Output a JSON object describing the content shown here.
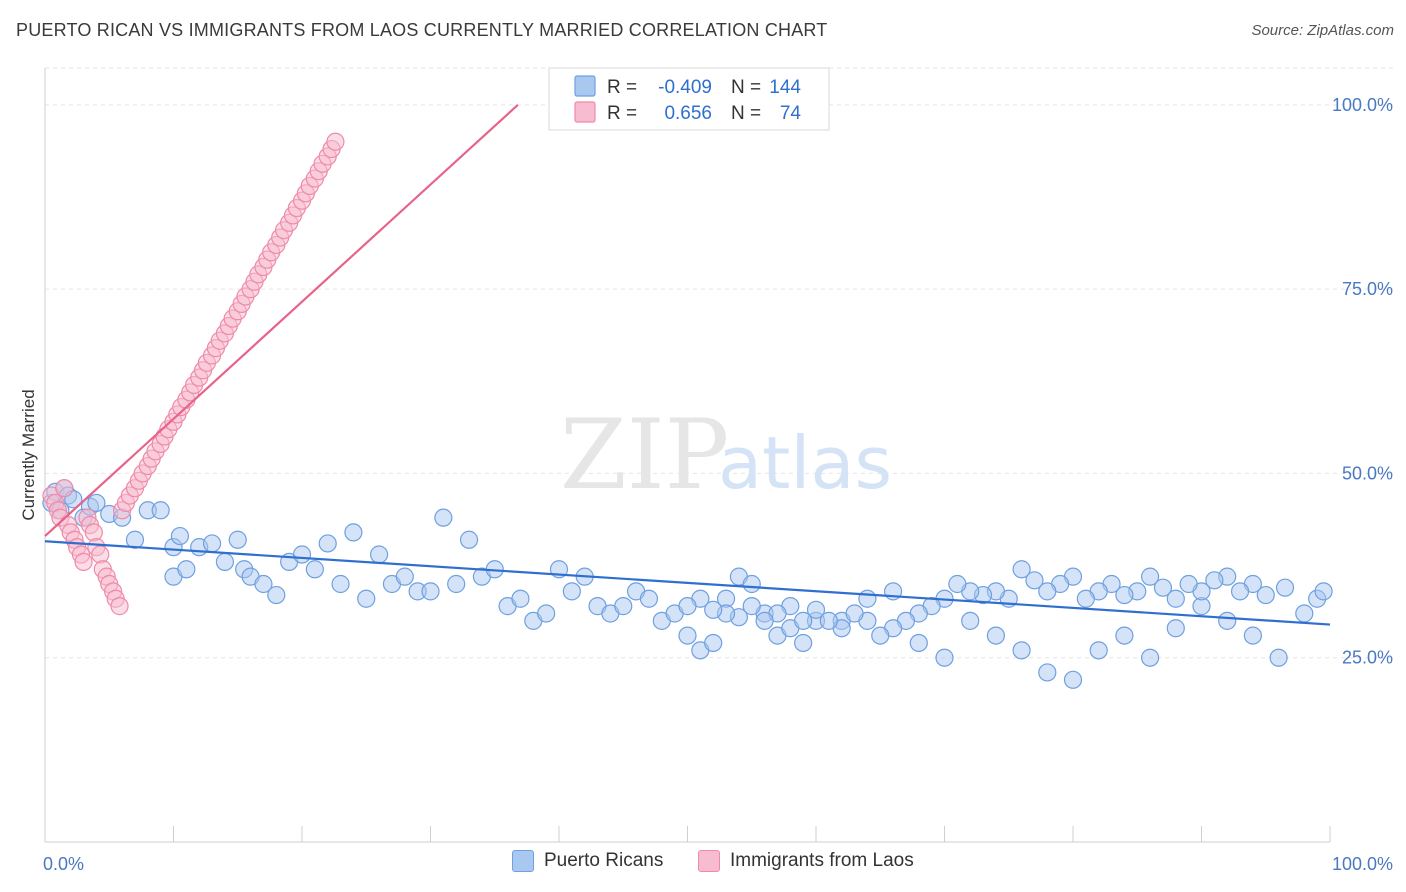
{
  "header": {
    "title": "PUERTO RICAN VS IMMIGRANTS FROM LAOS CURRENTLY MARRIED CORRELATION CHART",
    "source": "Source: ZipAtlas.com"
  },
  "watermark": {
    "zip": "ZIP",
    "atlas": "atlas"
  },
  "chart_data": {
    "type": "scatter",
    "ylabel": "Currently Married",
    "xlim": [
      0,
      100
    ],
    "ylim": [
      0,
      105
    ],
    "x_tick_labels": [
      "0.0%",
      "100.0%"
    ],
    "y_ticks": [
      25,
      50,
      75,
      100
    ],
    "y_tick_labels": [
      "25.0%",
      "50.0%",
      "75.0%",
      "100.0%"
    ],
    "grid": true,
    "legend_placement": "top-center",
    "stats": [
      {
        "r_label": "R =",
        "r": "-0.409",
        "n_label": "N =",
        "n": "144"
      },
      {
        "r_label": "R =",
        "r": "0.656",
        "n_label": "N =",
        "n": "74"
      }
    ],
    "series": [
      {
        "name": "Puerto Ricans",
        "color": "#6fa0e0",
        "fill": "#a9c8f0",
        "line_color": "#2f6fd0",
        "trend": {
          "x0": 0,
          "y0": 40.8,
          "x1": 100,
          "y1": 29.5
        },
        "points": [
          [
            0.5,
            46
          ],
          [
            0.8,
            47.5
          ],
          [
            1.2,
            45
          ],
          [
            1.5,
            48
          ],
          [
            1.8,
            47
          ],
          [
            2.2,
            46.5
          ],
          [
            3,
            44
          ],
          [
            3.5,
            45.5
          ],
          [
            4,
            46
          ],
          [
            5,
            44.5
          ],
          [
            6,
            44
          ],
          [
            7,
            41
          ],
          [
            8,
            45
          ],
          [
            9,
            45
          ],
          [
            10,
            36
          ],
          [
            10,
            40
          ],
          [
            10.5,
            41.5
          ],
          [
            11,
            37
          ],
          [
            12,
            40
          ],
          [
            13,
            40.5
          ],
          [
            14,
            38
          ],
          [
            15,
            41
          ],
          [
            15.5,
            37
          ],
          [
            16,
            36
          ],
          [
            17,
            35
          ],
          [
            18,
            33.5
          ],
          [
            19,
            38
          ],
          [
            20,
            39
          ],
          [
            21,
            37
          ],
          [
            22,
            40.5
          ],
          [
            23,
            35
          ],
          [
            24,
            42
          ],
          [
            25,
            33
          ],
          [
            26,
            39
          ],
          [
            27,
            35
          ],
          [
            28,
            36
          ],
          [
            29,
            34
          ],
          [
            30,
            34
          ],
          [
            31,
            44
          ],
          [
            32,
            35
          ],
          [
            33,
            41
          ],
          [
            34,
            36
          ],
          [
            35,
            37
          ],
          [
            36,
            32
          ],
          [
            37,
            33
          ],
          [
            38,
            30
          ],
          [
            39,
            31
          ],
          [
            40,
            37
          ],
          [
            41,
            34
          ],
          [
            42,
            36
          ],
          [
            43,
            32
          ],
          [
            44,
            31
          ],
          [
            45,
            32
          ],
          [
            46,
            34
          ],
          [
            47,
            33
          ],
          [
            48,
            30
          ],
          [
            49,
            31
          ],
          [
            50,
            28
          ],
          [
            51,
            26
          ],
          [
            52,
            27
          ],
          [
            53,
            33
          ],
          [
            54,
            36
          ],
          [
            55,
            35
          ],
          [
            56,
            31
          ],
          [
            57,
            28
          ],
          [
            58,
            29
          ],
          [
            59,
            27
          ],
          [
            60,
            30
          ],
          [
            62,
            30
          ],
          [
            64,
            33
          ],
          [
            66,
            34
          ],
          [
            68,
            27
          ],
          [
            70,
            25
          ],
          [
            72,
            30
          ],
          [
            74,
            28
          ],
          [
            76,
            26
          ],
          [
            78,
            23
          ],
          [
            80,
            22
          ],
          [
            82,
            26
          ],
          [
            84,
            28
          ],
          [
            86,
            25
          ],
          [
            88,
            29
          ],
          [
            90,
            32
          ],
          [
            92,
            30
          ],
          [
            94,
            28
          ],
          [
            96,
            25
          ],
          [
            98,
            31
          ],
          [
            99,
            33
          ],
          [
            99.5,
            34
          ],
          [
            96.5,
            34.5
          ],
          [
            95,
            33.5
          ],
          [
            94,
            35
          ],
          [
            93,
            34
          ],
          [
            92,
            36
          ],
          [
            91,
            35.5
          ],
          [
            90,
            34
          ],
          [
            89,
            35
          ],
          [
            88,
            33
          ],
          [
            87,
            34.5
          ],
          [
            86,
            36
          ],
          [
            85,
            34
          ],
          [
            84,
            33.5
          ],
          [
            83,
            35
          ],
          [
            82,
            34
          ],
          [
            81,
            33
          ],
          [
            80,
            36
          ],
          [
            79,
            35
          ],
          [
            78,
            34
          ],
          [
            77,
            35.5
          ],
          [
            76,
            37
          ],
          [
            75,
            33
          ],
          [
            74,
            34
          ],
          [
            73,
            33.5
          ],
          [
            72,
            34
          ],
          [
            71,
            35
          ],
          [
            70,
            33
          ],
          [
            69,
            32
          ],
          [
            68,
            31
          ],
          [
            67,
            30
          ],
          [
            66,
            29
          ],
          [
            65,
            28
          ],
          [
            64,
            30
          ],
          [
            63,
            31
          ],
          [
            62,
            29
          ],
          [
            61,
            30
          ],
          [
            60,
            31.5
          ],
          [
            59,
            30
          ],
          [
            58,
            32
          ],
          [
            57,
            31
          ],
          [
            56,
            30
          ],
          [
            55,
            32
          ],
          [
            54,
            30.5
          ],
          [
            53,
            31
          ],
          [
            52,
            31.5
          ],
          [
            51,
            33
          ],
          [
            50,
            32
          ]
        ]
      },
      {
        "name": "Immigrants from Laos",
        "color": "#f08aa8",
        "fill": "#f7bcd0",
        "line_color": "#e8638a",
        "trend": {
          "x0": 0,
          "y0": 41.5,
          "x1": 36.8,
          "y1": 100
        },
        "points": [
          [
            0.5,
            47
          ],
          [
            0.8,
            46
          ],
          [
            1,
            45
          ],
          [
            1.2,
            44
          ],
          [
            1.5,
            48
          ],
          [
            1.8,
            43
          ],
          [
            2,
            42
          ],
          [
            2.3,
            41
          ],
          [
            2.5,
            40
          ],
          [
            2.8,
            39
          ],
          [
            3,
            38
          ],
          [
            3.3,
            44
          ],
          [
            3.5,
            43
          ],
          [
            3.8,
            42
          ],
          [
            4,
            40
          ],
          [
            4.3,
            39
          ],
          [
            4.5,
            37
          ],
          [
            4.8,
            36
          ],
          [
            5,
            35
          ],
          [
            5.3,
            34
          ],
          [
            5.5,
            33
          ],
          [
            5.8,
            32
          ],
          [
            6,
            45
          ],
          [
            6.3,
            46
          ],
          [
            6.6,
            47
          ],
          [
            7,
            48
          ],
          [
            7.3,
            49
          ],
          [
            7.6,
            50
          ],
          [
            8,
            51
          ],
          [
            8.3,
            52
          ],
          [
            8.6,
            53
          ],
          [
            9,
            54
          ],
          [
            9.3,
            55
          ],
          [
            9.6,
            56
          ],
          [
            10,
            57
          ],
          [
            10.3,
            58
          ],
          [
            10.6,
            59
          ],
          [
            11,
            60
          ],
          [
            11.3,
            61
          ],
          [
            11.6,
            62
          ],
          [
            12,
            63
          ],
          [
            12.3,
            64
          ],
          [
            12.6,
            65
          ],
          [
            13,
            66
          ],
          [
            13.3,
            67
          ],
          [
            13.6,
            68
          ],
          [
            14,
            69
          ],
          [
            14.3,
            70
          ],
          [
            14.6,
            71
          ],
          [
            15,
            72
          ],
          [
            15.3,
            73
          ],
          [
            15.6,
            74
          ],
          [
            16,
            75
          ],
          [
            16.3,
            76
          ],
          [
            16.6,
            77
          ],
          [
            17,
            78
          ],
          [
            17.3,
            79
          ],
          [
            17.6,
            80
          ],
          [
            18,
            81
          ],
          [
            18.3,
            82
          ],
          [
            18.6,
            83
          ],
          [
            19,
            84
          ],
          [
            19.3,
            85
          ],
          [
            19.6,
            86
          ],
          [
            20,
            87
          ],
          [
            20.3,
            88
          ],
          [
            20.6,
            89
          ],
          [
            21,
            90
          ],
          [
            21.3,
            91
          ],
          [
            21.6,
            92
          ],
          [
            22,
            93
          ],
          [
            22.3,
            94
          ],
          [
            22.6,
            95
          ]
        ]
      }
    ]
  }
}
